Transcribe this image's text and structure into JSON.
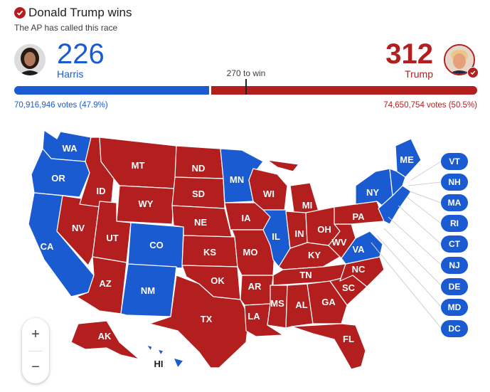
{
  "header": {
    "title": "Donald Trump wins",
    "subtitle": "The AP has called this race"
  },
  "dem": {
    "name": "Harris",
    "electoral_votes": "226",
    "popular_votes": "70,916,946 votes (47.9%)",
    "share": 0.421,
    "color": "#1a5bd1"
  },
  "rep": {
    "name": "Trump",
    "electoral_votes": "312",
    "popular_votes": "74,650,754 votes (50.5%)",
    "color": "#b31e1e"
  },
  "threshold_label": "270 to win",
  "states": {
    "WA": "WA",
    "OR": "OR",
    "CA": "CA",
    "NV": "NV",
    "ID": "ID",
    "MT": "MT",
    "WY": "WY",
    "UT": "UT",
    "AZ": "AZ",
    "CO": "CO",
    "NM": "NM",
    "ND": "ND",
    "SD": "SD",
    "NE": "NE",
    "KS": "KS",
    "OK": "OK",
    "TX": "TX",
    "MN": "MN",
    "IA": "IA",
    "MO": "MO",
    "AR": "AR",
    "LA": "LA",
    "WI": "WI",
    "IL": "IL",
    "MI": "MI",
    "IN": "IN",
    "OH": "OH",
    "KY": "KY",
    "TN": "TN",
    "MS": "MS",
    "AL": "AL",
    "GA": "GA",
    "FL": "FL",
    "SC": "SC",
    "NC": "NC",
    "VA": "VA",
    "WV": "WV",
    "PA": "PA",
    "NY": "NY",
    "ME": "ME",
    "AK": "AK",
    "HI": "HI"
  },
  "side_pills": [
    "VT",
    "NH",
    "MA",
    "RI",
    "CT",
    "NJ",
    "DE",
    "MD",
    "DC"
  ],
  "zoom": {
    "in": "+",
    "out": "−"
  }
}
